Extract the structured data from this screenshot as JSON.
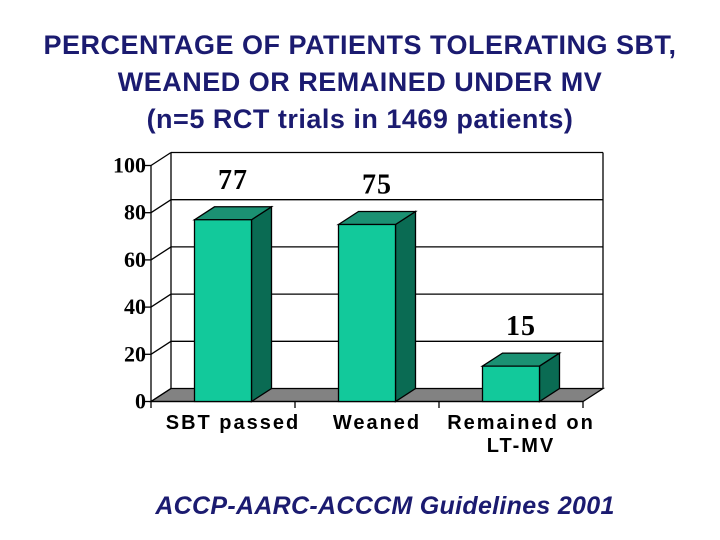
{
  "slide": {
    "title": {
      "lines": [
        "PERCENTAGE OF PATIENTS TOLERATING SBT,",
        "WEANED OR REMAINED UNDER MV",
        "(n=5 RCT trials in 1469 patients)"
      ],
      "color": "#1B1B70"
    },
    "caption": {
      "text": "ACCP-AARC-ACCCM Guidelines 2001",
      "color": "#1B1B70"
    }
  },
  "chart_data": {
    "type": "bar",
    "style": "3d-column",
    "title": "",
    "xlabel": "",
    "ylabel": "",
    "categories": [
      "SBT passed",
      "Weaned",
      "Remained on\nLT-MV"
    ],
    "values": [
      77,
      75,
      15
    ],
    "data_labels": [
      "77",
      "75",
      "15"
    ],
    "ylim": [
      0,
      100
    ],
    "yticks": [
      0,
      20,
      40,
      60,
      80,
      100
    ],
    "grid": true,
    "legend": false,
    "colors": {
      "bar_front": "#12C99B",
      "bar_top": "#1B9173",
      "bar_side": "#0A6B53",
      "floor": "#828282",
      "outline": "#000000",
      "text": "#000000"
    }
  }
}
